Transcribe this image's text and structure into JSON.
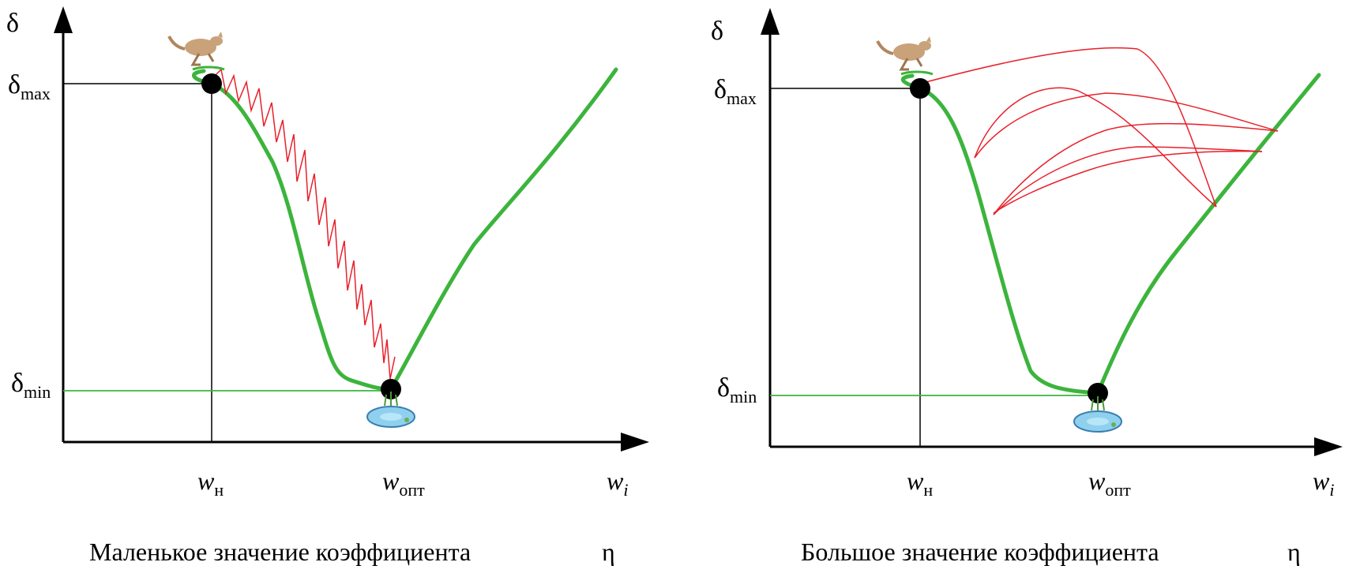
{
  "panels": [
    {
      "id": "small-eta",
      "y_axis_label": "δ",
      "delta_max": {
        "base": "δ",
        "sub": "max"
      },
      "delta_min": {
        "base": "δ",
        "sub": "min"
      },
      "x_labels": {
        "w_start": {
          "base": "w",
          "sub": "н"
        },
        "w_opt": {
          "base": "w",
          "sub": "опт"
        },
        "w_axis": {
          "base": "w",
          "sub": "i"
        }
      },
      "caption": "Маленькое значение коэффициента",
      "caption_symbol": "η"
    },
    {
      "id": "large-eta",
      "y_axis_label": "δ",
      "delta_max": {
        "base": "δ",
        "sub": "max"
      },
      "delta_min": {
        "base": "δ",
        "sub": "min"
      },
      "x_labels": {
        "w_start": {
          "base": "w",
          "sub": "н"
        },
        "w_opt": {
          "base": "w",
          "sub": "опт"
        },
        "w_axis": {
          "base": "w",
          "sub": "i"
        }
      },
      "caption": "Большое значение коэффициента",
      "caption_symbol": "η"
    }
  ],
  "colors": {
    "error_curve": "#3cb43c",
    "steps": "#e8202a",
    "axes": "#000000",
    "points": "#000000",
    "min_line": "#3cb43c",
    "pond": "#5aa8d8"
  },
  "icons": [
    "kangaroo-icon",
    "pond-icon"
  ]
}
